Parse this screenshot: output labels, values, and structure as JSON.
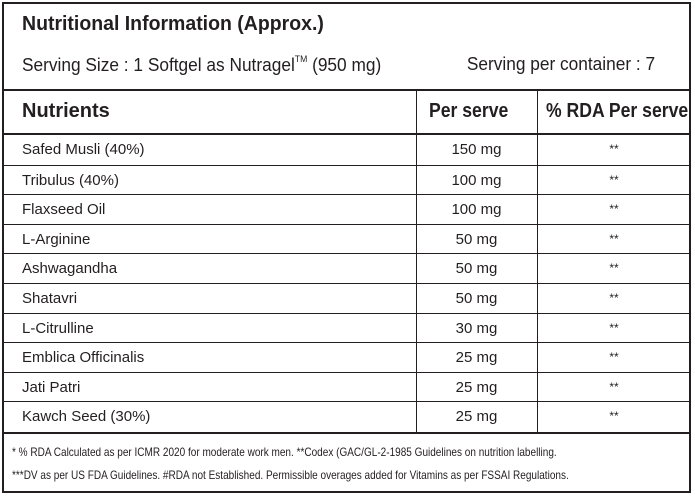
{
  "title": "Nutritional Information (Approx.)",
  "serving": {
    "size_prefix": "Serving Size : 1 Softgel as  Nutragel",
    "trademark": "TM",
    "size_suffix": " (950 mg)",
    "per_container": "Serving per container : 7"
  },
  "table": {
    "headers": [
      "Nutrients",
      "Per serve",
      "% RDA Per serve"
    ],
    "rows": [
      {
        "name": "Safed Musli (40%)",
        "per_serve": "150 mg",
        "rda": "**"
      },
      {
        "name": "Tribulus (40%)",
        "per_serve": "100 mg",
        "rda": "**"
      },
      {
        "name": "Flaxseed Oil",
        "per_serve": "100 mg",
        "rda": "**"
      },
      {
        "name": "L-Arginine",
        "per_serve": "50 mg",
        "rda": "**"
      },
      {
        "name": "Ashwagandha",
        "per_serve": "50 mg",
        "rda": "**"
      },
      {
        "name": "Shatavri",
        "per_serve": "50 mg",
        "rda": "**"
      },
      {
        "name": "L-Citrulline",
        "per_serve": "30 mg",
        "rda": "**"
      },
      {
        "name": "Emblica Officinalis",
        "per_serve": "25 mg",
        "rda": "**"
      },
      {
        "name": "Jati Patri",
        "per_serve": "25 mg",
        "rda": "**"
      },
      {
        "name": "Kawch Seed (30%)",
        "per_serve": "25 mg",
        "rda": "**"
      }
    ]
  },
  "footnotes": [
    "* % RDA Calculated as per ICMR 2020 for moderate work men. **Codex (GAC/GL-2-1985 Guidelines on nutrition labelling.",
    "***DV as per US FDA Guidelines. #RDA not Established. Permissible overages added for Vitamins as per FSSAI Regulations."
  ]
}
